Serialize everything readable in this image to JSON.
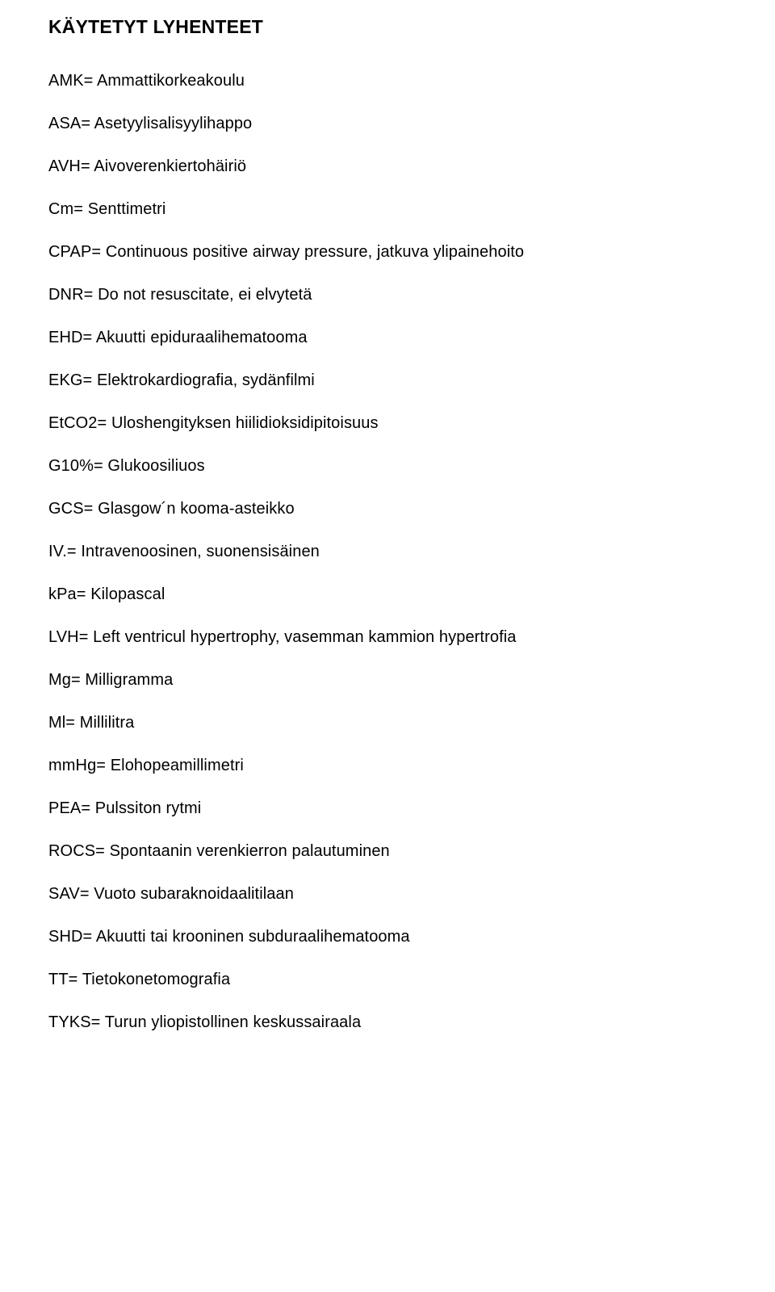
{
  "title": "KÄYTETYT LYHENTEET",
  "entries": [
    "AMK= Ammattikorkeakoulu",
    "ASA= Asetyylisalisyylihappo",
    "AVH= Aivoverenkiertohäiriö",
    "Cm= Senttimetri",
    "CPAP= Continuous positive airway pressure, jatkuva ylipainehoito",
    "DNR= Do not resuscitate, ei elvytetä",
    "EHD= Akuutti epiduraalihematooma",
    "EKG= Elektrokardiografia, sydänfilmi",
    "EtCO2= Uloshengityksen hiilidioksidipitoisuus",
    "G10%= Glukoosiliuos",
    "GCS= Glasgow´n kooma-asteikko",
    "IV.= Intravenoosinen, suonensisäinen",
    "kPa= Kilopascal",
    "LVH= Left ventricul hypertrophy, vasemman kammion hypertrofia",
    "Mg= Milligramma",
    "Ml= Millilitra",
    "mmHg= Elohopeamillimetri",
    "PEA= Pulssiton rytmi",
    "ROCS= Spontaanin verenkierron palautuminen",
    "SAV= Vuoto subaraknoidaalitilaan",
    "SHD= Akuutti tai krooninen subduraalihematooma",
    "TT= Tietokonetomografia",
    "TYKS= Turun yliopistollinen keskussairaala"
  ],
  "style": {
    "background_color": "#ffffff",
    "text_color": "#000000",
    "title_fontsize": 23,
    "title_fontweight": "bold",
    "entry_fontsize": 20,
    "font_family": "Arial, Helvetica, sans-serif"
  }
}
